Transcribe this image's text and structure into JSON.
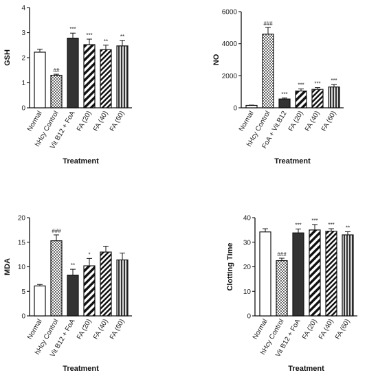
{
  "chart_data": [
    {
      "type": "bar",
      "categories": [
        "Normal",
        "hHcy Control",
        "Vit B12 + FoA",
        "FA (20)",
        "FA (40)",
        "FA (60)"
      ],
      "values": [
        2.22,
        1.3,
        2.78,
        2.52,
        2.32,
        2.47
      ],
      "errors": [
        0.12,
        0.04,
        0.2,
        0.22,
        0.18,
        0.22
      ],
      "annotations": [
        "",
        "##",
        "***",
        "***",
        "**",
        "**"
      ],
      "xlabel": "Treatment",
      "ylabel": "GSH",
      "ylim": [
        0,
        4
      ],
      "yticks": [
        0,
        1,
        2,
        3,
        4
      ]
    },
    {
      "type": "bar",
      "categories": [
        "Normal",
        "hHcy Control",
        "FoA + Vit.B12",
        "FA (20)",
        "FA (40)",
        "FA (60)"
      ],
      "values": [
        150,
        4600,
        550,
        1050,
        1150,
        1300
      ],
      "errors": [
        20,
        420,
        60,
        130,
        110,
        150
      ],
      "annotations": [
        "",
        "###",
        "***",
        "***",
        "***",
        "***"
      ],
      "xlabel": "Treatment",
      "ylabel": "NO",
      "ylim": [
        0,
        6000
      ],
      "yticks": [
        0,
        2000,
        4000,
        6000
      ]
    },
    {
      "type": "bar",
      "categories": [
        "Normal",
        "hHcy Control",
        "Vit B12 + FoA",
        "FA (20)",
        "FA (40)",
        "FA (60)"
      ],
      "values": [
        6.1,
        15.3,
        8.3,
        10.2,
        13.0,
        11.4
      ],
      "errors": [
        0.3,
        1.2,
        1.2,
        1.5,
        1.2,
        1.4
      ],
      "annotations": [
        "",
        "###",
        "**",
        "*",
        "",
        ""
      ],
      "xlabel": "Treatment",
      "ylabel": "MDA",
      "ylim": [
        0,
        20
      ],
      "yticks": [
        0,
        5,
        10,
        15,
        20
      ]
    },
    {
      "type": "bar",
      "categories": [
        "Normal",
        "hHcy Control",
        "Vit B12 + FoA",
        "FA (20)",
        "FA (40)",
        "FA (60)"
      ],
      "values": [
        34.2,
        22.5,
        33.8,
        35.0,
        34.5,
        33.0
      ],
      "errors": [
        1.3,
        1.0,
        1.6,
        2.2,
        1.0,
        1.3
      ],
      "annotations": [
        "",
        "###",
        "***",
        "***",
        "***",
        "**"
      ],
      "xlabel": "Treatment",
      "ylabel": "Clotting Time",
      "ylim": [
        0,
        40
      ],
      "yticks": [
        0,
        10,
        20,
        30,
        40
      ]
    }
  ]
}
